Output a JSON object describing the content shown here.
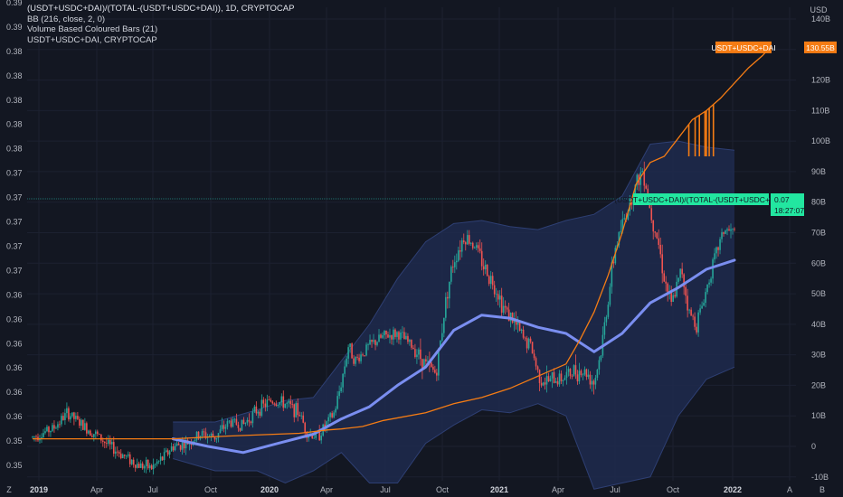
{
  "legend": {
    "line1": "(USDT+USDC+DAI)/(TOTAL-(USDT+USDC+DAI)), 1D, CRYPTOCAP",
    "line2": "BB (216, close, 2, 0)",
    "line3": "Volume Based Coloured Bars (21)",
    "line4": "USDT+USDC+DAI, CRYPTOCAP"
  },
  "currency": "USD",
  "corner_left": "Z",
  "corner_right": "B",
  "axis_a_label": "A",
  "colors": {
    "background": "#131722",
    "band_fill": "#1e2a4d",
    "band_line": "#2e3f73",
    "sma": "#7a8ef0",
    "stablecap": "#f57c14",
    "up": "#26a69a",
    "down": "#ef5350",
    "hline": "#26a69a",
    "last_tag": "#22e6a0"
  },
  "tags": {
    "stablecap_label": "USDT+USDC+DAI",
    "stablecap_value": "130.55B",
    "ratio_label": "(USDT+USDC+DAI)/(TOTAL-(USDT+USDC+DAI))",
    "ratio_value": "0.07",
    "countdown": "18:27:07"
  },
  "chart_data": {
    "type": "candlestick",
    "title": "(USDT+USDC+DAI)/(TOTAL-(USDT+USDC+DAI)), 1D, CRYPTOCAP",
    "x_ticks": [
      "2019",
      "Apr",
      "Jul",
      "Oct",
      "2020",
      "Apr",
      "Jul",
      "Oct",
      "2021",
      "Apr",
      "Jul",
      "Oct",
      "2022"
    ],
    "left_axis": {
      "ticks": [
        "0.39",
        "0.39",
        "0.38",
        "0.38",
        "0.38",
        "0.38",
        "0.38",
        "0.37",
        "0.37",
        "0.37",
        "0.37",
        "0.37",
        "0.36",
        "0.36",
        "0.36",
        "0.36",
        "0.36",
        "0.36",
        "0.35",
        "0.35"
      ]
    },
    "right_axis": {
      "unit": "USD",
      "ticks": [
        "140B",
        "130B",
        "120B",
        "110B",
        "100B",
        "90B",
        "80B",
        "70B",
        "60B",
        "50B",
        "40B",
        "30B",
        "20B",
        "10B",
        "0",
        "-10B"
      ],
      "range": [
        -10,
        140
      ]
    },
    "series": [
      {
        "name": "(USDT+USDC+DAI)/(TOTAL-(USDT+USDC+DAI))",
        "kind": "candles",
        "last": 0.07,
        "path_usd_equiv": [
          [
            0,
            3
          ],
          [
            0.03,
            6
          ],
          [
            0.05,
            11
          ],
          [
            0.07,
            7
          ],
          [
            0.09,
            4
          ],
          [
            0.11,
            0
          ],
          [
            0.13,
            -3
          ],
          [
            0.15,
            -6
          ],
          [
            0.17,
            -7
          ],
          [
            0.185,
            -4
          ],
          [
            0.2,
            0
          ],
          [
            0.22,
            1
          ],
          [
            0.24,
            4
          ],
          [
            0.26,
            3
          ],
          [
            0.28,
            8
          ],
          [
            0.3,
            7
          ],
          [
            0.32,
            12
          ],
          [
            0.34,
            15
          ],
          [
            0.36,
            14
          ],
          [
            0.38,
            11
          ],
          [
            0.39,
            5
          ],
          [
            0.405,
            3
          ],
          [
            0.415,
            6
          ],
          [
            0.43,
            11
          ],
          [
            0.44,
            21
          ],
          [
            0.45,
            33
          ],
          [
            0.46,
            28
          ],
          [
            0.48,
            33
          ],
          [
            0.5,
            36
          ],
          [
            0.52,
            37
          ],
          [
            0.54,
            33
          ],
          [
            0.56,
            27
          ],
          [
            0.575,
            24
          ],
          [
            0.59,
            50
          ],
          [
            0.6,
            61
          ],
          [
            0.615,
            69
          ],
          [
            0.63,
            66
          ],
          [
            0.645,
            58
          ],
          [
            0.66,
            52
          ],
          [
            0.67,
            46
          ],
          [
            0.685,
            41
          ],
          [
            0.7,
            35
          ],
          [
            0.71,
            33
          ],
          [
            0.72,
            24
          ],
          [
            0.73,
            21
          ],
          [
            0.745,
            22
          ],
          [
            0.76,
            23
          ],
          [
            0.775,
            25
          ],
          [
            0.79,
            24
          ],
          [
            0.8,
            21
          ],
          [
            0.81,
            31
          ],
          [
            0.818,
            45
          ],
          [
            0.83,
            65
          ],
          [
            0.845,
            76
          ],
          [
            0.86,
            86
          ],
          [
            0.87,
            91
          ],
          [
            0.88,
            77
          ],
          [
            0.89,
            69
          ],
          [
            0.9,
            55
          ],
          [
            0.91,
            46
          ],
          [
            0.925,
            58
          ],
          [
            0.935,
            44
          ],
          [
            0.945,
            40
          ],
          [
            0.955,
            47
          ],
          [
            0.965,
            56
          ],
          [
            0.975,
            64
          ],
          [
            0.985,
            71
          ],
          [
            1,
            70
          ]
        ]
      },
      {
        "name": "BB (216, close, 2, 0) basis",
        "kind": "line",
        "values_usd_equiv": [
          [
            0.2,
            2.5
          ],
          [
            0.25,
            0
          ],
          [
            0.3,
            -2
          ],
          [
            0.35,
            1
          ],
          [
            0.4,
            4
          ],
          [
            0.44,
            9
          ],
          [
            0.48,
            13
          ],
          [
            0.52,
            20
          ],
          [
            0.56,
            26
          ],
          [
            0.6,
            38
          ],
          [
            0.64,
            43
          ],
          [
            0.68,
            42
          ],
          [
            0.72,
            39
          ],
          [
            0.76,
            37
          ],
          [
            0.8,
            31
          ],
          [
            0.84,
            37
          ],
          [
            0.88,
            47
          ],
          [
            0.92,
            52
          ],
          [
            0.96,
            58
          ],
          [
            1,
            61
          ]
        ]
      },
      {
        "name": "BB (216, close, 2, 0) upper",
        "kind": "band",
        "values_usd_equiv": [
          [
            0.2,
            8
          ],
          [
            0.26,
            8
          ],
          [
            0.32,
            12
          ],
          [
            0.36,
            15
          ],
          [
            0.4,
            16
          ],
          [
            0.44,
            28
          ],
          [
            0.48,
            40
          ],
          [
            0.52,
            55
          ],
          [
            0.56,
            67
          ],
          [
            0.6,
            73
          ],
          [
            0.64,
            74
          ],
          [
            0.68,
            72
          ],
          [
            0.72,
            71
          ],
          [
            0.76,
            74
          ],
          [
            0.8,
            76
          ],
          [
            0.84,
            82
          ],
          [
            0.88,
            99
          ],
          [
            0.92,
            100
          ],
          [
            0.96,
            98
          ],
          [
            1,
            97
          ]
        ]
      },
      {
        "name": "BB (216, close, 2, 0) lower",
        "kind": "band",
        "values_usd_equiv": [
          [
            0.2,
            -4
          ],
          [
            0.26,
            -8
          ],
          [
            0.32,
            -8
          ],
          [
            0.36,
            -12
          ],
          [
            0.4,
            -8
          ],
          [
            0.44,
            -2
          ],
          [
            0.48,
            -12
          ],
          [
            0.52,
            -12
          ],
          [
            0.56,
            1
          ],
          [
            0.6,
            7
          ],
          [
            0.64,
            12
          ],
          [
            0.68,
            11
          ],
          [
            0.72,
            14
          ],
          [
            0.76,
            10
          ],
          [
            0.8,
            -14
          ],
          [
            0.84,
            -12
          ],
          [
            0.88,
            -10
          ],
          [
            0.92,
            10
          ],
          [
            0.96,
            22
          ],
          [
            1,
            26
          ]
        ]
      },
      {
        "name": "USDT+USDC+DAI",
        "kind": "line",
        "last": "130.55B",
        "values_usd": [
          [
            0,
            2.5
          ],
          [
            0.2,
            2.5
          ],
          [
            0.28,
            3.4
          ],
          [
            0.38,
            4.3
          ],
          [
            0.42,
            5.4
          ],
          [
            0.44,
            5.7
          ],
          [
            0.47,
            6.5
          ],
          [
            0.5,
            8.5
          ],
          [
            0.56,
            11
          ],
          [
            0.6,
            14
          ],
          [
            0.64,
            16
          ],
          [
            0.68,
            19
          ],
          [
            0.72,
            23
          ],
          [
            0.76,
            27
          ],
          [
            0.78,
            35
          ],
          [
            0.8,
            44
          ],
          [
            0.82,
            56
          ],
          [
            0.84,
            70
          ],
          [
            0.86,
            86
          ],
          [
            0.88,
            93
          ],
          [
            0.9,
            95
          ],
          [
            0.92,
            101
          ],
          [
            0.94,
            107
          ],
          [
            0.96,
            110
          ],
          [
            0.98,
            114
          ],
          [
            1,
            119
          ],
          [
            1.02,
            124
          ],
          [
            1.04,
            128
          ],
          [
            1.05,
            130.6
          ]
        ],
        "dips": [
          [
            0.935,
            95
          ],
          [
            0.944,
            95
          ],
          [
            0.95,
            95
          ],
          [
            0.958,
            95
          ],
          [
            0.96,
            95
          ],
          [
            0.964,
            95
          ],
          [
            0.97,
            95
          ]
        ]
      }
    ]
  }
}
